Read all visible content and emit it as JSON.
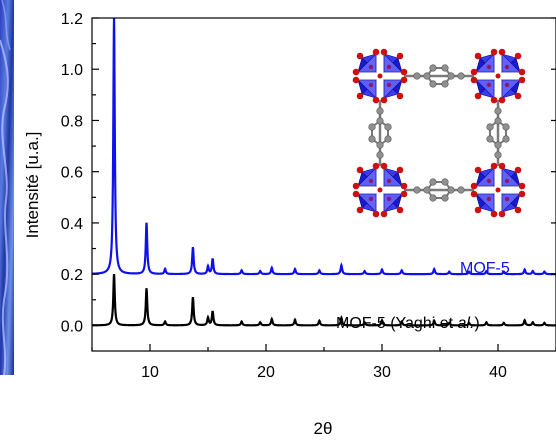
{
  "chart_data": {
    "type": "line",
    "xlabel": "2θ",
    "ylabel": "Intensité [u.a.]",
    "xlim": [
      5,
      45
    ],
    "ylim": [
      -0.1,
      1.2
    ],
    "xticks": [
      10,
      20,
      30,
      40
    ],
    "yticks": [
      0.0,
      0.2,
      0.4,
      0.6,
      0.8,
      1.0,
      1.2
    ],
    "ytick_labels": [
      "0.0",
      "0.2",
      "0.4",
      "0.6",
      "0.8",
      "1.0",
      "1.2"
    ],
    "grid": false,
    "series": [
      {
        "name": "MOF-5",
        "color": "#1010ee",
        "baseline": 0.2,
        "peaks": [
          {
            "x": 6.9,
            "y": 1.0
          },
          {
            "x": 9.7,
            "y": 0.2
          },
          {
            "x": 11.3,
            "y": 0.02
          },
          {
            "x": 13.7,
            "y": 0.105
          },
          {
            "x": 15.0,
            "y": 0.03
          },
          {
            "x": 15.4,
            "y": 0.06
          },
          {
            "x": 17.9,
            "y": 0.015
          },
          {
            "x": 19.5,
            "y": 0.012
          },
          {
            "x": 20.5,
            "y": 0.025
          },
          {
            "x": 22.5,
            "y": 0.02
          },
          {
            "x": 24.6,
            "y": 0.015
          },
          {
            "x": 26.5,
            "y": 0.035
          },
          {
            "x": 28.5,
            "y": 0.012
          },
          {
            "x": 30.0,
            "y": 0.018
          },
          {
            "x": 31.7,
            "y": 0.015
          },
          {
            "x": 34.5,
            "y": 0.02
          },
          {
            "x": 35.8,
            "y": 0.01
          },
          {
            "x": 37.5,
            "y": 0.01
          },
          {
            "x": 39.0,
            "y": 0.012
          },
          {
            "x": 40.5,
            "y": 0.01
          },
          {
            "x": 42.3,
            "y": 0.018
          },
          {
            "x": 43.0,
            "y": 0.012
          },
          {
            "x": 44.0,
            "y": 0.01
          }
        ]
      },
      {
        "name": "MOF-5 (Yaghi et al.)",
        "color": "#000000",
        "baseline": 0.0,
        "peaks": [
          {
            "x": 6.9,
            "y": 0.2
          },
          {
            "x": 9.7,
            "y": 0.145
          },
          {
            "x": 11.3,
            "y": 0.015
          },
          {
            "x": 13.7,
            "y": 0.11
          },
          {
            "x": 15.0,
            "y": 0.03
          },
          {
            "x": 15.4,
            "y": 0.055
          },
          {
            "x": 17.9,
            "y": 0.015
          },
          {
            "x": 19.5,
            "y": 0.012
          },
          {
            "x": 20.5,
            "y": 0.025
          },
          {
            "x": 22.5,
            "y": 0.022
          },
          {
            "x": 24.6,
            "y": 0.018
          },
          {
            "x": 26.5,
            "y": 0.03
          },
          {
            "x": 28.5,
            "y": 0.012
          },
          {
            "x": 30.0,
            "y": 0.02
          },
          {
            "x": 31.7,
            "y": 0.015
          },
          {
            "x": 34.5,
            "y": 0.018
          },
          {
            "x": 35.8,
            "y": 0.01
          },
          {
            "x": 37.5,
            "y": 0.01
          },
          {
            "x": 39.0,
            "y": 0.012
          },
          {
            "x": 40.5,
            "y": 0.01
          },
          {
            "x": 42.3,
            "y": 0.02
          },
          {
            "x": 43.0,
            "y": 0.012
          },
          {
            "x": 44.0,
            "y": 0.01
          }
        ]
      }
    ],
    "annotations": [
      {
        "text": "MOF-5",
        "color": "#1010ee"
      },
      {
        "text_parts": [
          "MOF-5 (Yaghi et ",
          "al.",
          ")"
        ],
        "color": "#000000"
      }
    ],
    "inset": {
      "description_icon": "mof-5-crystal-structure-icon",
      "colors": {
        "tetrahedra": "#1a1ad0",
        "zinc": "#8a1a6a",
        "oxygen": "#cc1111",
        "carbon": "#909090"
      }
    }
  },
  "sidebar": {
    "icon": "blue-photo-strip-icon",
    "color": "#2a4ab8"
  }
}
